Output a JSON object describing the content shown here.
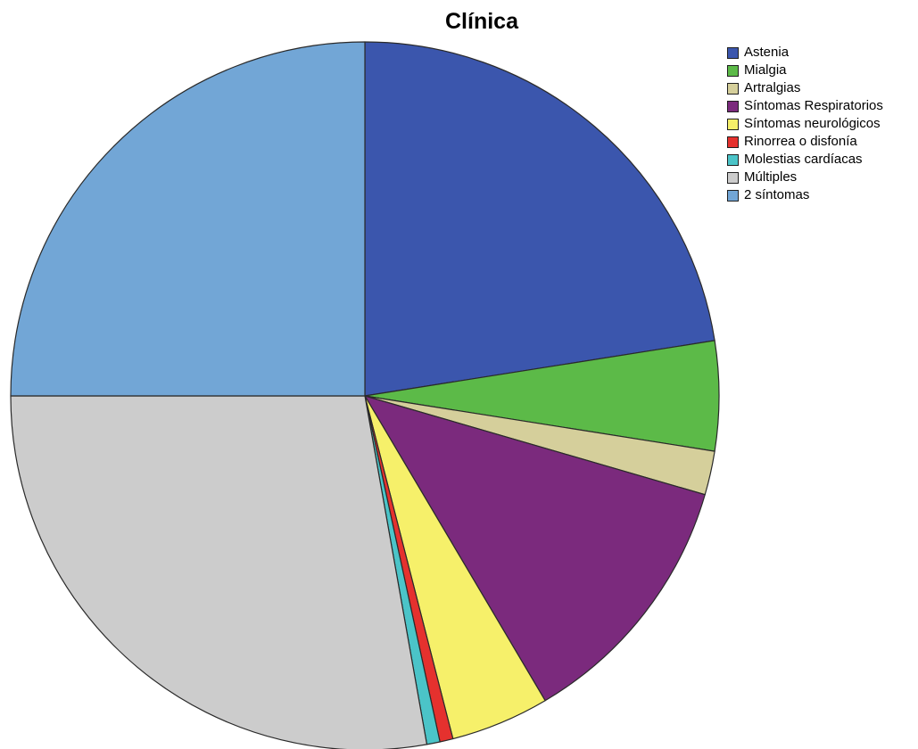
{
  "chart_data": {
    "type": "pie",
    "title": "Clínica",
    "legend_position": "top-right",
    "start_angle": "12 o'clock",
    "direction": "clockwise",
    "series": [
      {
        "name": "",
        "values": [
          {
            "label": "Astenia",
            "value": 22.5,
            "color": "#3b56ad"
          },
          {
            "label": "Mialgia",
            "value": 5.0,
            "color": "#5cba48"
          },
          {
            "label": "Artralgias",
            "value": 2.0,
            "color": "#d5cf9b"
          },
          {
            "label": "Síntomas Respiratorios",
            "value": 12.0,
            "color": "#7b2a7d"
          },
          {
            "label": "Síntomas neurológicos",
            "value": 4.5,
            "color": "#f6f06a"
          },
          {
            "label": "Rinorrea o disfonía",
            "value": 0.6,
            "color": "#e5312e"
          },
          {
            "label": "Molestias cardíacas",
            "value": 0.6,
            "color": "#4bc4c8"
          },
          {
            "label": "Múltiples",
            "value": 27.8,
            "color": "#cccccc"
          },
          {
            "label": "2 síntomas",
            "value": 25.0,
            "color": "#72a6d6"
          }
        ]
      }
    ]
  }
}
